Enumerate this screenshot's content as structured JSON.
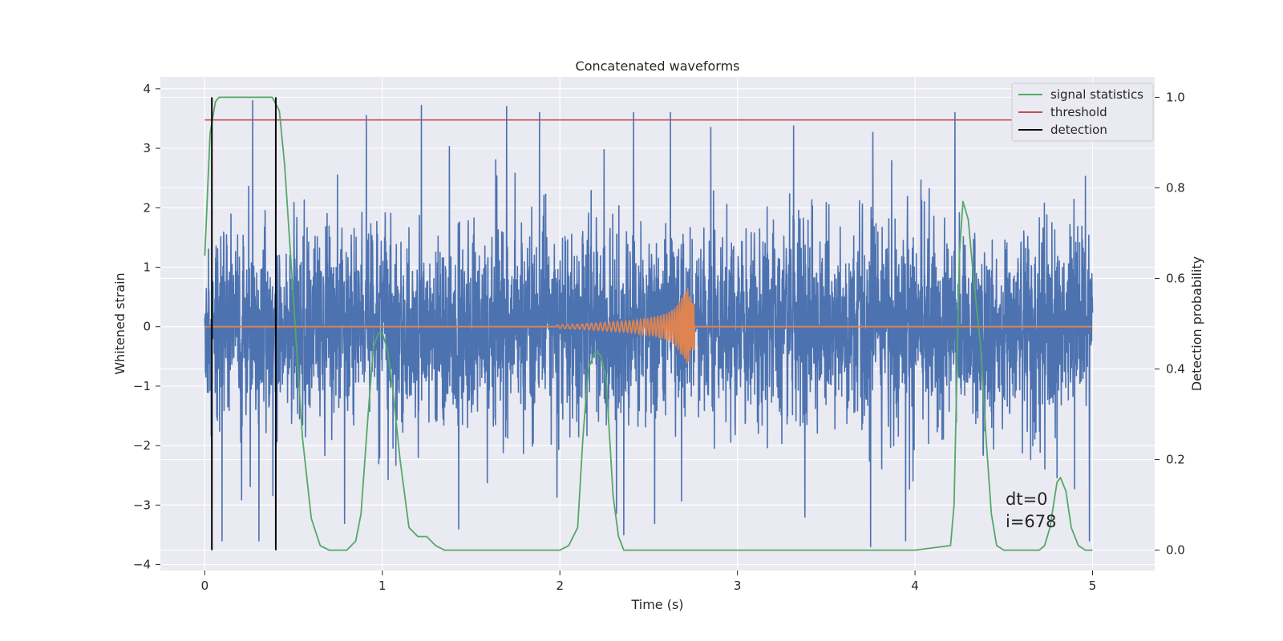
{
  "chart_data": {
    "type": "line",
    "title": "Concatenated waveforms",
    "xlabel": "Time (s)",
    "ylabel": "Whitened strain",
    "y2label": "Detection probability",
    "xlim": [
      -0.25,
      5.35
    ],
    "ylim": [
      -4.1,
      4.2
    ],
    "y2lim": [
      -0.045,
      1.045
    ],
    "x_ticks": [
      0,
      1,
      2,
      3,
      4,
      5
    ],
    "x_tick_labels": [
      "0",
      "1",
      "2",
      "3",
      "4",
      "5"
    ],
    "y_ticks": [
      -4,
      -3,
      -2,
      -1,
      0,
      1,
      2,
      3,
      4
    ],
    "y_tick_labels": [
      "−4",
      "−3",
      "−2",
      "−1",
      "0",
      "1",
      "2",
      "3",
      "4"
    ],
    "y2_ticks": [
      0.0,
      0.2,
      0.4,
      0.6,
      0.8,
      1.0
    ],
    "y2_tick_labels": [
      "0.0",
      "0.2",
      "0.4",
      "0.6",
      "0.8",
      "1.0"
    ],
    "grid": true,
    "legend_position": "top-right",
    "colors": {
      "background": "#eaeaf2",
      "grid": "#ffffff",
      "noise": "#4c72b0",
      "chirp": "#dd8452",
      "signal_statistics": "#55a868",
      "threshold": "#c44e52",
      "detection": "#000000"
    },
    "series": [
      {
        "kind": "noise",
        "axis": "left",
        "x_range": [
          0,
          5
        ],
        "typical_amplitude": 1.3,
        "noted_spikes": [
          {
            "x": 0.27,
            "y": 3.8
          },
          {
            "x": 0.91,
            "y": 3.55
          },
          {
            "x": 1.22,
            "y": 3.72
          },
          {
            "x": 1.7,
            "y": 3.7
          },
          {
            "x": 2.85,
            "y": 3.35
          },
          {
            "x": 0.04,
            "y": -3.0
          },
          {
            "x": 1.43,
            "y": -3.4
          },
          {
            "x": 2.36,
            "y": -3.5
          },
          {
            "x": 3.75,
            "y": -3.7
          },
          {
            "x": 3.38,
            "y": -3.2
          }
        ]
      },
      {
        "kind": "chirp",
        "axis": "left",
        "x": [
          0,
          2.0,
          2.1,
          2.2,
          2.3,
          2.4,
          2.5,
          2.6,
          2.65,
          2.7,
          2.72,
          2.74,
          5
        ],
        "envelope": [
          0,
          0.03,
          0.04,
          0.06,
          0.08,
          0.1,
          0.14,
          0.22,
          0.32,
          0.55,
          0.65,
          0.4,
          0
        ]
      },
      {
        "name": "signal statistics",
        "axis": "right",
        "x": [
          0,
          0.03,
          0.06,
          0.08,
          0.1,
          0.15,
          0.2,
          0.25,
          0.3,
          0.35,
          0.38,
          0.42,
          0.45,
          0.5,
          0.55,
          0.6,
          0.65,
          0.7,
          0.75,
          0.8,
          0.85,
          0.88,
          0.92,
          0.95,
          0.98,
          1.0,
          1.03,
          1.06,
          1.1,
          1.15,
          1.2,
          1.25,
          1.3,
          1.35,
          1.5,
          1.6,
          1.7,
          1.8,
          1.9,
          2.0,
          2.05,
          2.1,
          2.13,
          2.16,
          2.2,
          2.23,
          2.26,
          2.3,
          2.33,
          2.36,
          2.4,
          2.5,
          2.7,
          3.0,
          3.5,
          4.0,
          4.2,
          4.22,
          4.25,
          4.27,
          4.3,
          4.33,
          4.37,
          4.4,
          4.43,
          4.46,
          4.5,
          4.6,
          4.7,
          4.73,
          4.76,
          4.8,
          4.82,
          4.85,
          4.88,
          4.92,
          4.96,
          5.0
        ],
        "y": [
          0.65,
          0.92,
          0.99,
          1.0,
          1.0,
          1.0,
          1.0,
          1.0,
          1.0,
          1.0,
          1.0,
          0.97,
          0.85,
          0.55,
          0.25,
          0.07,
          0.01,
          0.0,
          0.0,
          0.0,
          0.02,
          0.08,
          0.3,
          0.45,
          0.48,
          0.48,
          0.44,
          0.35,
          0.2,
          0.05,
          0.03,
          0.03,
          0.01,
          0.0,
          0.0,
          0.0,
          0.0,
          0.0,
          0.0,
          0.0,
          0.01,
          0.05,
          0.25,
          0.4,
          0.44,
          0.43,
          0.38,
          0.12,
          0.03,
          0.0,
          0.0,
          0.0,
          0.0,
          0.0,
          0.0,
          0.0,
          0.01,
          0.1,
          0.65,
          0.77,
          0.73,
          0.6,
          0.45,
          0.25,
          0.08,
          0.01,
          0.0,
          0.0,
          0.0,
          0.01,
          0.05,
          0.15,
          0.16,
          0.13,
          0.05,
          0.01,
          0.0,
          0.0
        ]
      },
      {
        "name": "threshold",
        "axis": "right",
        "x": [
          0,
          5.1
        ],
        "y": [
          0.95,
          0.95
        ]
      },
      {
        "name": "detection",
        "axis": "right",
        "kind": "vlines",
        "x": [
          0.04,
          0.4
        ],
        "y_range": [
          0.0,
          1.0
        ]
      }
    ],
    "legend": [
      "signal statistics",
      "threshold",
      "detection"
    ],
    "annotations": [
      "dt=0",
      "i=678"
    ],
    "annotation_position": "bottom-right"
  }
}
